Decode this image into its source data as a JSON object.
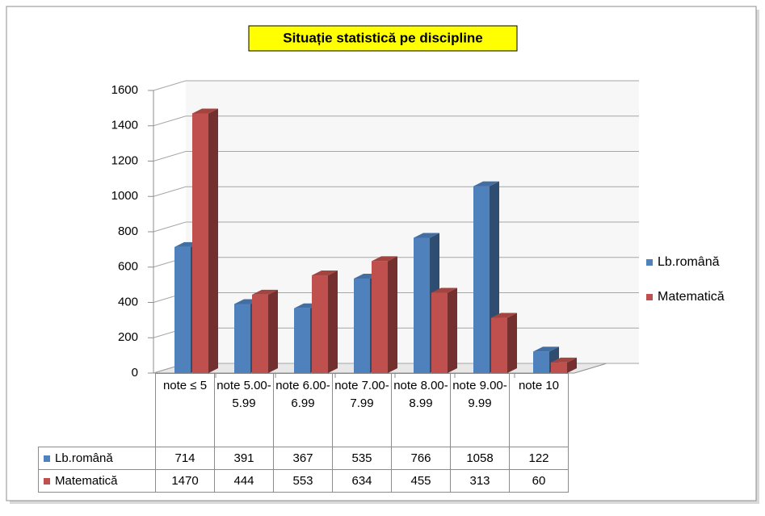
{
  "chart_data": {
    "type": "bar3d",
    "title": "Situație statistică pe discipline",
    "categories": [
      "note ≤ 5",
      "note 5.00-5.99",
      "note 6.00-6.99",
      "note 7.00-7.99",
      "note 8.00-8.99",
      "note 9.00-9.99",
      "note 10"
    ],
    "series": [
      {
        "name": "Lb.română",
        "color": "#4f81bd",
        "values": [
          714,
          391,
          367,
          535,
          766,
          1058,
          122
        ]
      },
      {
        "name": "Matematică",
        "color": "#c0504d",
        "values": [
          1470,
          444,
          553,
          634,
          455,
          313,
          60
        ]
      }
    ],
    "ylim": [
      0,
      1600
    ],
    "yticks": [
      0,
      200,
      400,
      600,
      800,
      1000,
      1200,
      1400,
      1600
    ],
    "grid": true,
    "legend": "right"
  }
}
